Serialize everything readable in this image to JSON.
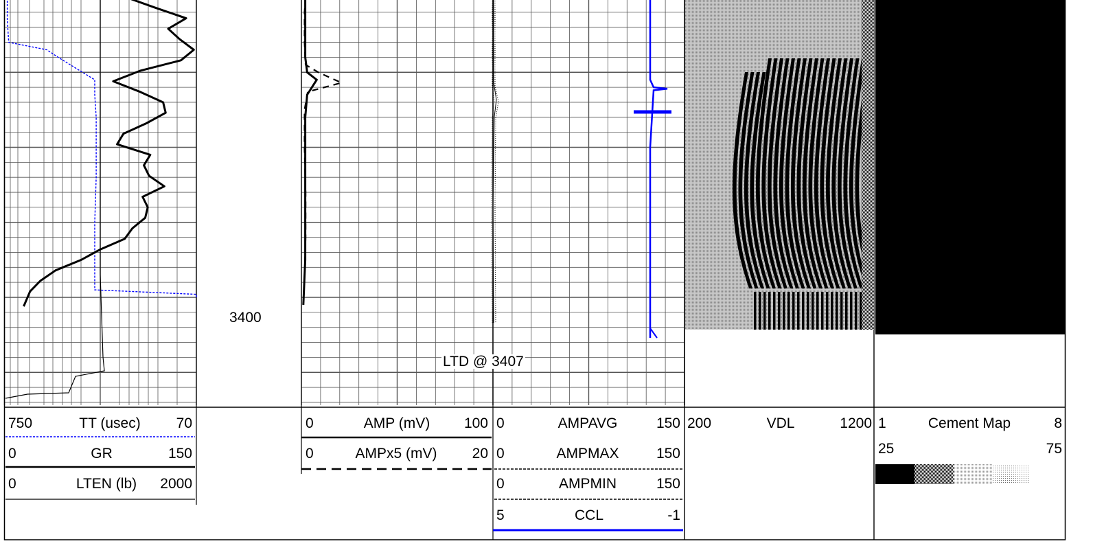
{
  "chart_data": {
    "type": "line",
    "title": "",
    "depth_label": "3400",
    "annotation": "LTD @ 3407",
    "grid": true,
    "tracks": [
      {
        "id": "track1",
        "curves": [
          {
            "name": "TT (usec)",
            "min": "750",
            "max": "70",
            "unit": "usec",
            "color": "#0000ff",
            "style": "dotted"
          },
          {
            "name": "GR",
            "min": "0",
            "max": "150",
            "color": "#000000",
            "style": "solid-thick"
          },
          {
            "name": "LTEN (lb)",
            "min": "0",
            "max": "2000",
            "color": "#000000",
            "style": "solid-thin"
          }
        ]
      },
      {
        "id": "track2",
        "curves": [
          {
            "name": "AMP (mV)",
            "min": "0",
            "max": "100",
            "color": "#000000",
            "style": "solid-thick"
          },
          {
            "name": "AMPx5 (mV)",
            "min": "0",
            "max": "20",
            "color": "#000000",
            "style": "dashed"
          }
        ]
      },
      {
        "id": "track3",
        "curves": [
          {
            "name": "AMPAVG",
            "min": "0",
            "max": "150",
            "color": "#000000",
            "style": "solid-thin"
          },
          {
            "name": "AMPMAX",
            "min": "0",
            "max": "150",
            "color": "#000000",
            "style": "dotted"
          },
          {
            "name": "AMPMIN",
            "min": "0",
            "max": "150",
            "color": "#000000",
            "style": "dotted"
          },
          {
            "name": "CCL",
            "min": "5",
            "max": "-1",
            "color": "#0000ff",
            "style": "solid"
          }
        ]
      },
      {
        "id": "track4",
        "curves": [
          {
            "name": "VDL",
            "min": "200",
            "max": "1200",
            "color": "#000000",
            "style": "image"
          }
        ]
      },
      {
        "id": "track5",
        "curves": [
          {
            "name": "Cement Map",
            "min": "1",
            "max": "8",
            "min2": "25",
            "max2": "75",
            "color": "#000000",
            "style": "image"
          }
        ]
      }
    ],
    "series": [
      {
        "name": "GR",
        "x": [
          95,
          118,
          142,
          128,
          137,
          148,
          138,
          106,
          85,
          106,
          124,
          126,
          111,
          93,
          88,
          114,
          109,
          113,
          125,
          108,
          112,
          110,
          100,
          94,
          75,
          60,
          40,
          28,
          20,
          15
        ],
        "y": [
          3380.0,
          3380.7,
          3381.4,
          3382.1,
          3382.8,
          3383.5,
          3384.2,
          3384.9,
          3385.6,
          3386.3,
          3387.0,
          3387.7,
          3388.4,
          3389.1,
          3389.8,
          3390.5,
          3391.2,
          3391.9,
          3392.6,
          3393.3,
          3394.0,
          3394.7,
          3395.4,
          3396.1,
          3396.8,
          3397.5,
          3398.2,
          3398.9,
          3399.6,
          3400.6
        ]
      },
      {
        "name": "TT (usec)",
        "x": [
          740,
          740,
          735,
          600,
          560,
          430,
          430,
          425,
          425,
          425,
          430,
          430,
          70,
          70
        ],
        "y": [
          3380.0,
          3381.5,
          3383.0,
          3383.5,
          3384.0,
          3385.5,
          3386.5,
          3388.0,
          3390.0,
          3392.0,
          3395.0,
          3399.5,
          3399.8,
          3400.0
        ]
      },
      {
        "name": "AMP (mV)",
        "x": [
          2,
          2,
          2,
          3,
          8,
          3,
          2,
          2,
          2,
          2,
          1
        ],
        "y": [
          3380.0,
          3382.0,
          3384.0,
          3385.0,
          3385.5,
          3386.5,
          3388.0,
          3391.0,
          3394.0,
          3397.5,
          3400.5
        ]
      },
      {
        "name": "AMPx5 (mV)",
        "x": [
          2,
          1.5,
          1.5,
          2,
          8,
          19,
          3,
          1.5,
          1.5,
          2,
          2,
          1.5,
          1
        ],
        "y": [
          3380.0,
          3381.0,
          3383.0,
          3384.5,
          3385.0,
          3385.7,
          3386.3,
          3387.5,
          3390.0,
          3393.0,
          3396.0,
          3398.5,
          3400.0
        ]
      },
      {
        "name": "CCL",
        "x": [
          1,
          1,
          1.5,
          3.5,
          1.5,
          1,
          1,
          1,
          1,
          1
        ],
        "y": [
          3380.0,
          3385.5,
          3386.0,
          3386.1,
          3386.2,
          3390.0,
          3395.0,
          3400.0,
          3401.0,
          3402.7
        ]
      }
    ],
    "legend_samples": [
      "black",
      "dark-gray",
      "gray",
      "light-gray",
      "very-light-gray"
    ]
  }
}
